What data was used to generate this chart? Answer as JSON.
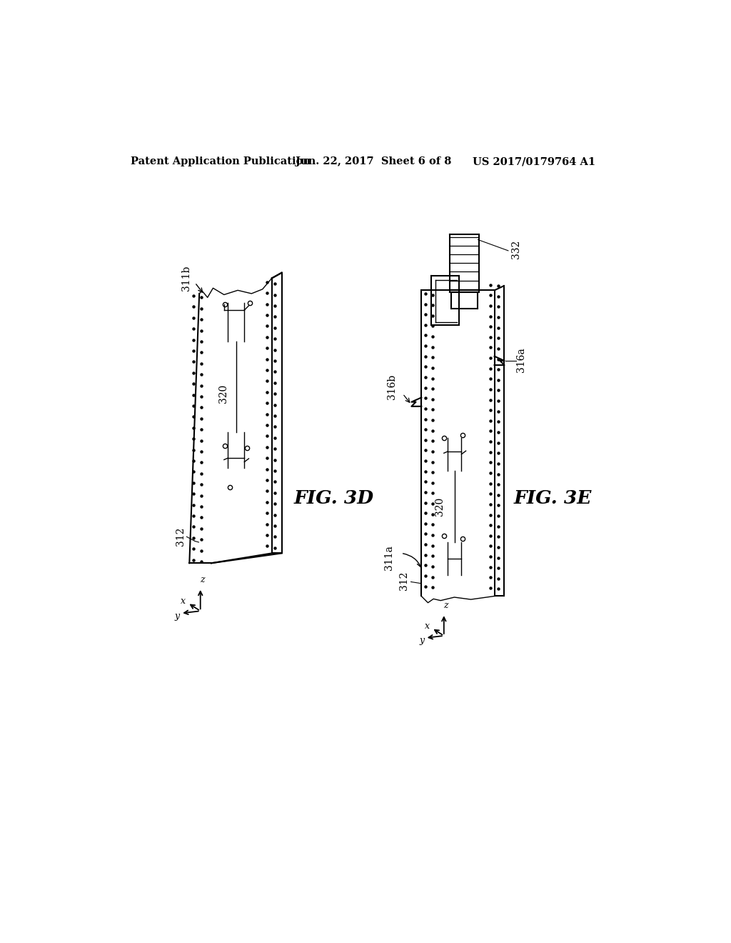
{
  "bg_color": "#ffffff",
  "header_left": "Patent Application Publication",
  "header_mid": "Jun. 22, 2017  Sheet 6 of 8",
  "header_right": "US 2017/0179764 A1",
  "fig3d_label": "FIG. 3D",
  "fig3e_label": "FIG. 3E"
}
